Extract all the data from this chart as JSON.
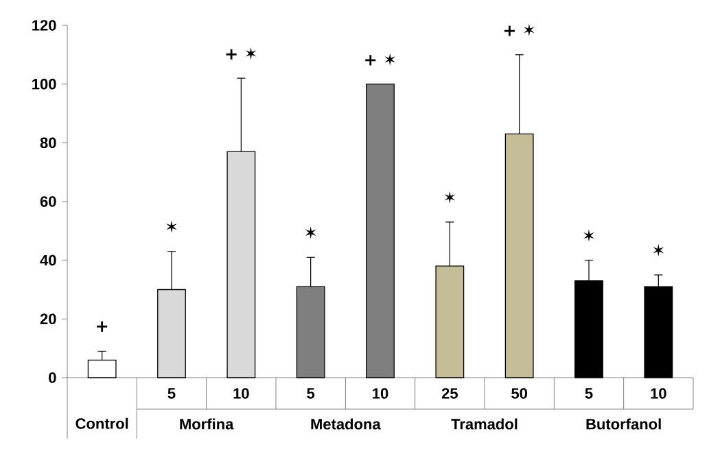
{
  "chart_data": {
    "type": "bar",
    "categories": [
      null,
      "5",
      "10",
      "5",
      "10",
      "25",
      "50",
      "5",
      "10"
    ],
    "values": [
      6,
      30,
      77,
      31,
      100,
      38,
      83,
      33,
      31
    ],
    "colors": [
      "#ffffff",
      "#d9d9d9",
      "#d9d9d9",
      "#7f7f7f",
      "#7f7f7f",
      "#c4bd97",
      "#c4bd97",
      "#000000",
      "#000000"
    ],
    "errors": [
      [
        6,
        9
      ],
      [
        30,
        43
      ],
      [
        77,
        102
      ],
      [
        31,
        41
      ],
      null,
      [
        38,
        53
      ],
      [
        83,
        110
      ],
      [
        33,
        40
      ],
      [
        31,
        35
      ]
    ],
    "ylim": [
      0,
      120
    ],
    "yticks": [
      0,
      20,
      40,
      60,
      80,
      100,
      120
    ],
    "grid": false,
    "annotations": [
      "Control",
      "Morfina",
      "Metadona",
      "Tramadol",
      "Butorfanol",
      "+",
      "✶",
      "+ ✶",
      "✶",
      "+ ✶",
      "✶",
      "+ ✶",
      "✶",
      "✶"
    ]
  }
}
